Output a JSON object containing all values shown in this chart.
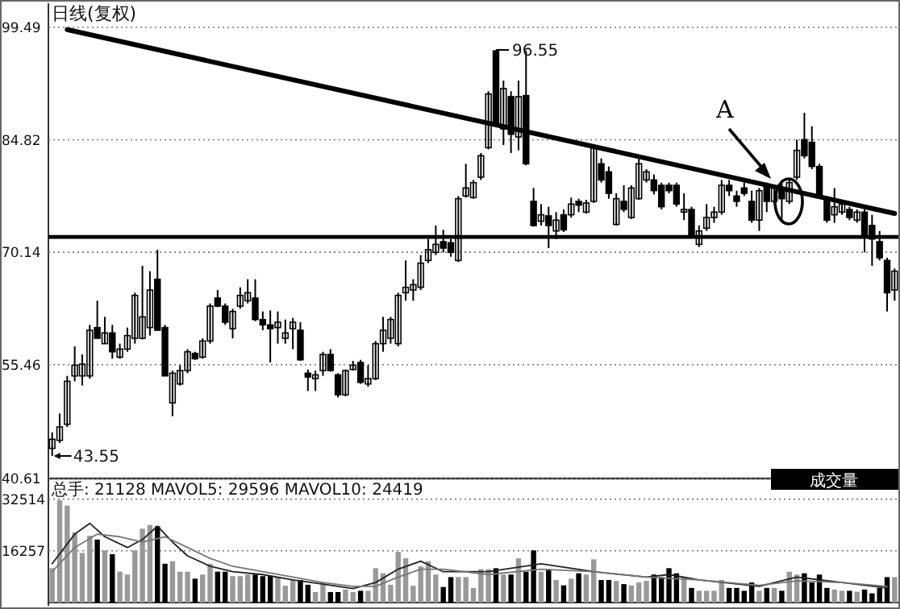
{
  "chart_data": [
    {
      "type": "candlestick",
      "title": "日线(复权)",
      "color": "#000000",
      "categories": [
        null,
        null,
        null,
        null,
        null,
        null,
        null,
        null,
        null,
        null,
        null,
        null,
        null,
        null,
        null,
        null,
        null,
        null,
        null,
        null,
        null,
        null,
        null,
        null,
        null,
        null,
        null,
        null,
        null,
        null,
        null,
        null,
        null,
        null,
        null,
        null,
        null,
        null,
        null,
        null,
        null,
        null,
        null,
        null,
        null,
        null,
        null,
        null,
        null,
        null,
        null,
        null,
        null,
        null,
        null,
        null,
        null,
        null,
        null,
        null,
        null,
        null,
        null,
        null,
        null,
        null,
        null,
        null,
        null,
        null,
        null,
        null,
        null,
        null,
        null,
        null,
        null,
        null,
        null,
        null,
        null,
        null,
        null,
        null,
        null,
        null,
        null,
        null,
        null,
        null,
        null,
        null,
        null,
        null,
        null,
        null,
        null,
        null,
        null,
        null,
        null,
        null,
        null,
        null,
        null,
        null,
        null,
        null,
        null,
        null,
        null,
        null,
        null
      ],
      "ohlc": [
        [
          44.54,
          46.64,
          43.55,
          45.73
        ],
        [
          45.59,
          49.09,
          45.24,
          47.34
        ],
        [
          47.69,
          54.0,
          47.34,
          53.3
        ],
        [
          54.0,
          57.85,
          53.3,
          55.4
        ],
        [
          54.0,
          56.8,
          52.74,
          55.54
        ],
        [
          54.0,
          60.66,
          53.65,
          59.96
        ],
        [
          60.31,
          63.81,
          58.91,
          58.91
        ],
        [
          58.21,
          61.71,
          58.21,
          59.61
        ],
        [
          59.61,
          60.66,
          56.24,
          57.15
        ],
        [
          56.45,
          58.21,
          56.24,
          57.5
        ],
        [
          57.5,
          60.31,
          57.15,
          59.26
        ],
        [
          58.91,
          64.86,
          58.21,
          64.51
        ],
        [
          58.91,
          68.37,
          58.77,
          61.71
        ],
        [
          60.31,
          67.67,
          59.26,
          65.21
        ],
        [
          66.62,
          70.47,
          59.96,
          59.96
        ],
        [
          60.31,
          60.66,
          54.0,
          54.0
        ],
        [
          50.49,
          54.7,
          48.74,
          54.35
        ],
        [
          52.95,
          55.4,
          52.74,
          54.7
        ],
        [
          54.7,
          57.5,
          54.35,
          57.15
        ],
        [
          56.94,
          57.15,
          56.1,
          56.24
        ],
        [
          56.45,
          58.91,
          56.24,
          58.56
        ],
        [
          58.56,
          63.46,
          58.21,
          63.11
        ],
        [
          64.16,
          65.21,
          62.97,
          63.11
        ],
        [
          63.11,
          63.46,
          60.66,
          61.01
        ],
        [
          60.17,
          62.76,
          58.91,
          62.41
        ],
        [
          63.11,
          65.56,
          62.76,
          64.51
        ],
        [
          63.81,
          66.62,
          63.46,
          64.86
        ],
        [
          64.16,
          66.62,
          61.15,
          61.36
        ],
        [
          61.36,
          62.41,
          59.96,
          60.66
        ],
        [
          60.66,
          62.55,
          55.75,
          60.17
        ],
        [
          60.31,
          62.41,
          58.21,
          61.01
        ],
        [
          58.91,
          61.36,
          58.21,
          59.61
        ],
        [
          60.17,
          61.57,
          57.5,
          61.01
        ],
        [
          59.96,
          61.01,
          55.96,
          56.1
        ],
        [
          54.35,
          54.84,
          52.03,
          53.86
        ],
        [
          53.65,
          54.7,
          52.03,
          54.14
        ],
        [
          54.7,
          57.15,
          54.0,
          56.8
        ],
        [
          56.8,
          57.5,
          54.56,
          54.7
        ],
        [
          54.14,
          54.35,
          51.19,
          51.54
        ],
        [
          51.54,
          54.84,
          51.33,
          54.7
        ],
        [
          54.84,
          55.96,
          54.7,
          55.4
        ],
        [
          55.75,
          56.1,
          52.95,
          53.16
        ],
        [
          52.95,
          55.4,
          52.6,
          53.65
        ],
        [
          53.65,
          58.56,
          53.44,
          58.21
        ],
        [
          58.21,
          61.71,
          57.15,
          59.96
        ],
        [
          58.91,
          61.71,
          58.21,
          61.36
        ],
        [
          58.21,
          64.86,
          57.85,
          64.51
        ],
        [
          64.86,
          69.07,
          63.81,
          65.56
        ],
        [
          65.21,
          66.62,
          63.81,
          65.91
        ],
        [
          65.56,
          69.77,
          65.21,
          68.72
        ],
        [
          69.07,
          71.87,
          68.72,
          70.47
        ],
        [
          70.12,
          73.63,
          69.77,
          71.17
        ],
        [
          71.52,
          73.07,
          70.12,
          70.68
        ],
        [
          71.38,
          71.87,
          69.56,
          70.12
        ],
        [
          69.07,
          77.48,
          68.86,
          77.13
        ],
        [
          77.48,
          81.69,
          77.27,
          78.53
        ],
        [
          77.27,
          79.58,
          77.13,
          79.23
        ],
        [
          79.94,
          83.09,
          79.58,
          82.74
        ],
        [
          83.79,
          91.15,
          83.58,
          90.8
        ],
        [
          96.41,
          96.55,
          86.8,
          86.94
        ],
        [
          86.24,
          92.55,
          84.14,
          91.5
        ],
        [
          90.45,
          91.15,
          83.09,
          85.54
        ],
        [
          85.19,
          92.55,
          83.44,
          90.45
        ],
        [
          90.59,
          96.41,
          81.48,
          81.69
        ],
        [
          76.78,
          78.53,
          73.49,
          73.63
        ],
        [
          74.19,
          76.43,
          73.63,
          75.03
        ],
        [
          74.89,
          76.08,
          70.68,
          73.63
        ],
        [
          72.92,
          75.38,
          71.87,
          74.33
        ],
        [
          75.03,
          75.73,
          72.78,
          73.07
        ],
        [
          75.03,
          77.27,
          74.68,
          76.43
        ],
        [
          76.78,
          77.13,
          75.38,
          76.29
        ],
        [
          75.38,
          76.99,
          75.17,
          76.57
        ],
        [
          76.78,
          84.14,
          76.57,
          83.79
        ],
        [
          81.69,
          82.39,
          79.23,
          79.58
        ],
        [
          80.64,
          81.34,
          77.13,
          77.83
        ],
        [
          73.77,
          77.83,
          73.63,
          77.13
        ],
        [
          76.78,
          78.88,
          75.38,
          75.73
        ],
        [
          74.68,
          78.88,
          74.47,
          78.53
        ],
        [
          77.13,
          82.39,
          76.99,
          81.69
        ],
        [
          79.58,
          80.99,
          79.23,
          80.64
        ],
        [
          79.58,
          80.29,
          77.69,
          78.18
        ],
        [
          78.88,
          79.23,
          75.73,
          76.08
        ],
        [
          78.88,
          79.23,
          77.83,
          78.18
        ],
        [
          78.88,
          79.23,
          76.08,
          76.43
        ],
        [
          75.38,
          77.83,
          74.33,
          75.73
        ],
        [
          75.73,
          76.08,
          72.22,
          72.22
        ],
        [
          71.17,
          73.63,
          70.82,
          72.92
        ],
        [
          73.28,
          76.43,
          72.92,
          74.68
        ],
        [
          74.68,
          76.08,
          73.98,
          75.38
        ],
        [
          75.38,
          79.58,
          75.03,
          78.88
        ],
        [
          78.88,
          79.58,
          77.48,
          78.18
        ],
        [
          77.48,
          78.18,
          76.08,
          76.78
        ],
        [
          78.53,
          79.23,
          77.48,
          77.83
        ],
        [
          76.78,
          78.18,
          73.98,
          74.33
        ],
        [
          74.33,
          78.53,
          72.92,
          78.18
        ],
        [
          78.88,
          79.23,
          75.38,
          76.78
        ],
        [
          76.78,
          78.88,
          76.43,
          78.53
        ],
        [
          78.53,
          79.58,
          74.33,
          77.13
        ],
        [
          76.78,
          79.58,
          76.43,
          79.23
        ],
        [
          79.94,
          84.84,
          79.58,
          83.44
        ],
        [
          84.84,
          88.35,
          82.39,
          82.74
        ],
        [
          84.49,
          86.59,
          80.99,
          81.34
        ],
        [
          81.34,
          81.69,
          77.13,
          77.48
        ],
        [
          77.13,
          77.48,
          73.98,
          74.33
        ],
        [
          75.03,
          78.53,
          73.98,
          76.08
        ],
        [
          75.38,
          76.78,
          75.03,
          76.43
        ],
        [
          75.73,
          76.08,
          74.33,
          74.68
        ],
        [
          74.33,
          75.73,
          73.98,
          75.38
        ],
        [
          75.38,
          75.73,
          70.12,
          72.22
        ],
        [
          73.63,
          75.03,
          68.37,
          71.87
        ],
        [
          71.52,
          72.92,
          69.07,
          69.42
        ],
        [
          69.07,
          69.42,
          62.41,
          64.86
        ],
        [
          65.21,
          68.02,
          63.81,
          67.67
        ]
      ],
      "series": [
        {
          "type": "line",
          "color": "#000000",
          "values": [
            null,
            null,
            99.2,
            null,
            null,
            null,
            null,
            null,
            null,
            null,
            null,
            null,
            null,
            null,
            null,
            null,
            null,
            null,
            null,
            null,
            null,
            null,
            null,
            null,
            null,
            null,
            null,
            null,
            null,
            null,
            null,
            null,
            null,
            null,
            null,
            null,
            null,
            null,
            null,
            null,
            null,
            null,
            null,
            null,
            null,
            null,
            null,
            null,
            null,
            null,
            null,
            null,
            null,
            null,
            null,
            null,
            null,
            null,
            null,
            null,
            null,
            null,
            null,
            null,
            null,
            null,
            null,
            null,
            null,
            null,
            null,
            null,
            null,
            null,
            null,
            null,
            null,
            null,
            null,
            null,
            null,
            null,
            null,
            null,
            null,
            null,
            null,
            null,
            null,
            null,
            null,
            null,
            null,
            null,
            null,
            null,
            null,
            null,
            null,
            null,
            null,
            null,
            null,
            null,
            null,
            null,
            null,
            null,
            null,
            null,
            null,
            null,
            75.2
          ]
        }
      ],
      "ref_lines": [
        {
          "axis": "y",
          "value": 72.15,
          "color": "#000000"
        }
      ],
      "annotations": [
        "96.55",
        "43.55",
        "A"
      ],
      "ylim": [
        40.61,
        99.49
      ],
      "yticks": [
        99.49,
        84.82,
        70.14,
        55.46,
        40.61
      ],
      "grid": "y"
    },
    {
      "type": "bar",
      "title": "总手: 21128 MAVOL5: 29596 MAVOL10: 24419",
      "categories": [
        null,
        null,
        null,
        null,
        null,
        null,
        null,
        null,
        null,
        null,
        null,
        null,
        null,
        null,
        null,
        null,
        null,
        null,
        null,
        null,
        null,
        null,
        null,
        null,
        null,
        null,
        null,
        null,
        null,
        null,
        null,
        null,
        null,
        null,
        null,
        null,
        null,
        null,
        null,
        null,
        null,
        null,
        null,
        null,
        null,
        null,
        null,
        null,
        null,
        null,
        null,
        null,
        null,
        null,
        null,
        null,
        null,
        null,
        null,
        null,
        null,
        null,
        null,
        null,
        null,
        null,
        null,
        null,
        null,
        null,
        null,
        null,
        null,
        null,
        null,
        null,
        null,
        null,
        null,
        null,
        null,
        null,
        null,
        null,
        null,
        null,
        null,
        null,
        null,
        null,
        null,
        null,
        null,
        null,
        null,
        null,
        null,
        null,
        null,
        null,
        null,
        null,
        null,
        null,
        null,
        null,
        null,
        null,
        null,
        null,
        null,
        null,
        null
      ],
      "series": [
        {
          "type": "bar",
          "values": [
            10800,
            32200,
            30500,
            22000,
            15600,
            21000,
            19800,
            16400,
            15200,
            9700,
            8800,
            16400,
            23200,
            24400,
            24000,
            12200,
            13000,
            9700,
            9700,
            7500,
            8800,
            12200,
            9700,
            9700,
            8300,
            8300,
            8800,
            8800,
            8300,
            8300,
            8000,
            5300,
            7100,
            7100,
            5600,
            3300,
            6300,
            3300,
            3300,
            4100,
            3300,
            3700,
            3700,
            10800,
            9200,
            5600,
            15900,
            13900,
            5300,
            11400,
            13000,
            8800,
            4900,
            8000,
            8000,
            8000,
            4600,
            10500,
            10500,
            10800,
            8800,
            8800,
            13900,
            9700,
            16400,
            9700,
            10500,
            7100,
            5400,
            7500,
            9200,
            8800,
            13600,
            7100,
            7100,
            6800,
            5800,
            5400,
            6300,
            6800,
            8800,
            8000,
            10800,
            9200,
            8000,
            4600,
            3700,
            3700,
            3700,
            7100,
            4600,
            4600,
            3700,
            6300,
            3700,
            4600,
            4600,
            3700,
            9700,
            8800,
            9200,
            6300,
            8800,
            4600,
            4100,
            3700,
            3700,
            3400,
            4100,
            2900,
            4600,
            8000,
            8000
          ],
          "colors": [
            "#999999",
            "#999999",
            "#999999",
            "#999999",
            "#999999",
            "#999999",
            "#000000",
            "#999999",
            "#000000",
            "#999999",
            "#999999",
            "#999999",
            "#999999",
            "#999999",
            "#000000",
            "#000000",
            "#999999",
            "#999999",
            "#999999",
            "#000000",
            "#999999",
            "#999999",
            "#000000",
            "#000000",
            "#999999",
            "#999999",
            "#999999",
            "#000000",
            "#000000",
            "#000000",
            "#999999",
            "#999999",
            "#999999",
            "#000000",
            "#000000",
            "#999999",
            "#999999",
            "#000000",
            "#000000",
            "#999999",
            "#999999",
            "#000000",
            "#999999",
            "#999999",
            "#999999",
            "#999999",
            "#999999",
            "#999999",
            "#999999",
            "#999999",
            "#999999",
            "#999999",
            "#000000",
            "#000000",
            "#999999",
            "#999999",
            "#999999",
            "#999999",
            "#999999",
            "#000000",
            "#999999",
            "#000000",
            "#999999",
            "#000000",
            "#000000",
            "#999999",
            "#000000",
            "#999999",
            "#000000",
            "#999999",
            "#000000",
            "#999999",
            "#999999",
            "#000000",
            "#000000",
            "#999999",
            "#000000",
            "#999999",
            "#999999",
            "#999999",
            "#000000",
            "#000000",
            "#000000",
            "#000000",
            "#999999",
            "#000000",
            "#999999",
            "#999999",
            "#999999",
            "#999999",
            "#000000",
            "#000000",
            "#000000",
            "#000000",
            "#999999",
            "#000000",
            "#999999",
            "#000000",
            "#999999",
            "#999999",
            "#000000",
            "#000000",
            "#000000",
            "#000000",
            "#999999",
            "#999999",
            "#000000",
            "#999999",
            "#000000",
            "#000000",
            "#000000",
            "#000000",
            "#999999"
          ]
        },
        {
          "type": "line",
          "color": "#222222",
          "values": [
            12200,
            null,
            null,
            21500,
            null,
            24900,
            null,
            20700,
            null,
            null,
            17300,
            null,
            19800,
            null,
            24000,
            null,
            19000,
            null,
            14700,
            null,
            null,
            11400,
            null,
            null,
            9700,
            null,
            null,
            null,
            8800,
            null,
            null,
            null,
            7100,
            null,
            null,
            null,
            5800,
            null,
            null,
            null,
            4400,
            null,
            null,
            6300,
            null,
            null,
            10500,
            null,
            null,
            13000,
            null,
            null,
            9700,
            null,
            null,
            null,
            null,
            null,
            9700,
            null,
            null,
            null,
            null,
            null,
            null,
            12200,
            null,
            null,
            null,
            null,
            null,
            null,
            9700,
            null,
            null,
            null,
            null,
            null,
            null,
            8000,
            null,
            null,
            8800,
            null,
            null,
            null,
            7100,
            null,
            null,
            null,
            null,
            null,
            null,
            null,
            5100,
            null,
            null,
            null,
            null,
            8000,
            null,
            null,
            null,
            null,
            null,
            6300,
            null,
            null,
            null,
            null,
            null,
            4600,
            null
          ]
        },
        {
          "type": "line",
          "color": "#777777",
          "values": [
            9700,
            null,
            null,
            17300,
            null,
            null,
            21500,
            null,
            null,
            20700,
            null,
            null,
            19000,
            null,
            null,
            20700,
            null,
            null,
            17300,
            null,
            null,
            13900,
            null,
            null,
            11400,
            null,
            null,
            null,
            9700,
            null,
            null,
            null,
            8000,
            null,
            null,
            null,
            6300,
            null,
            null,
            null,
            5100,
            null,
            null,
            5100,
            null,
            null,
            8000,
            null,
            null,
            10500,
            null,
            null,
            10500,
            null,
            null,
            null,
            null,
            null,
            8800,
            null,
            null,
            null,
            null,
            null,
            null,
            10500,
            null,
            null,
            null,
            null,
            null,
            null,
            9700,
            null,
            null,
            null,
            null,
            null,
            null,
            8000,
            null,
            null,
            null,
            null,
            null,
            null,
            7100,
            null,
            null,
            null,
            null,
            null,
            null,
            null,
            5400,
            null,
            null,
            null,
            null,
            6800,
            null,
            null,
            null,
            null,
            null,
            6300,
            null,
            null,
            null,
            null,
            null,
            5100,
            null
          ]
        }
      ],
      "annotations": [
        "成交量"
      ],
      "ylim": [
        0,
        39000
      ],
      "yticks": [
        32514,
        16257
      ],
      "grid": "y"
    }
  ]
}
